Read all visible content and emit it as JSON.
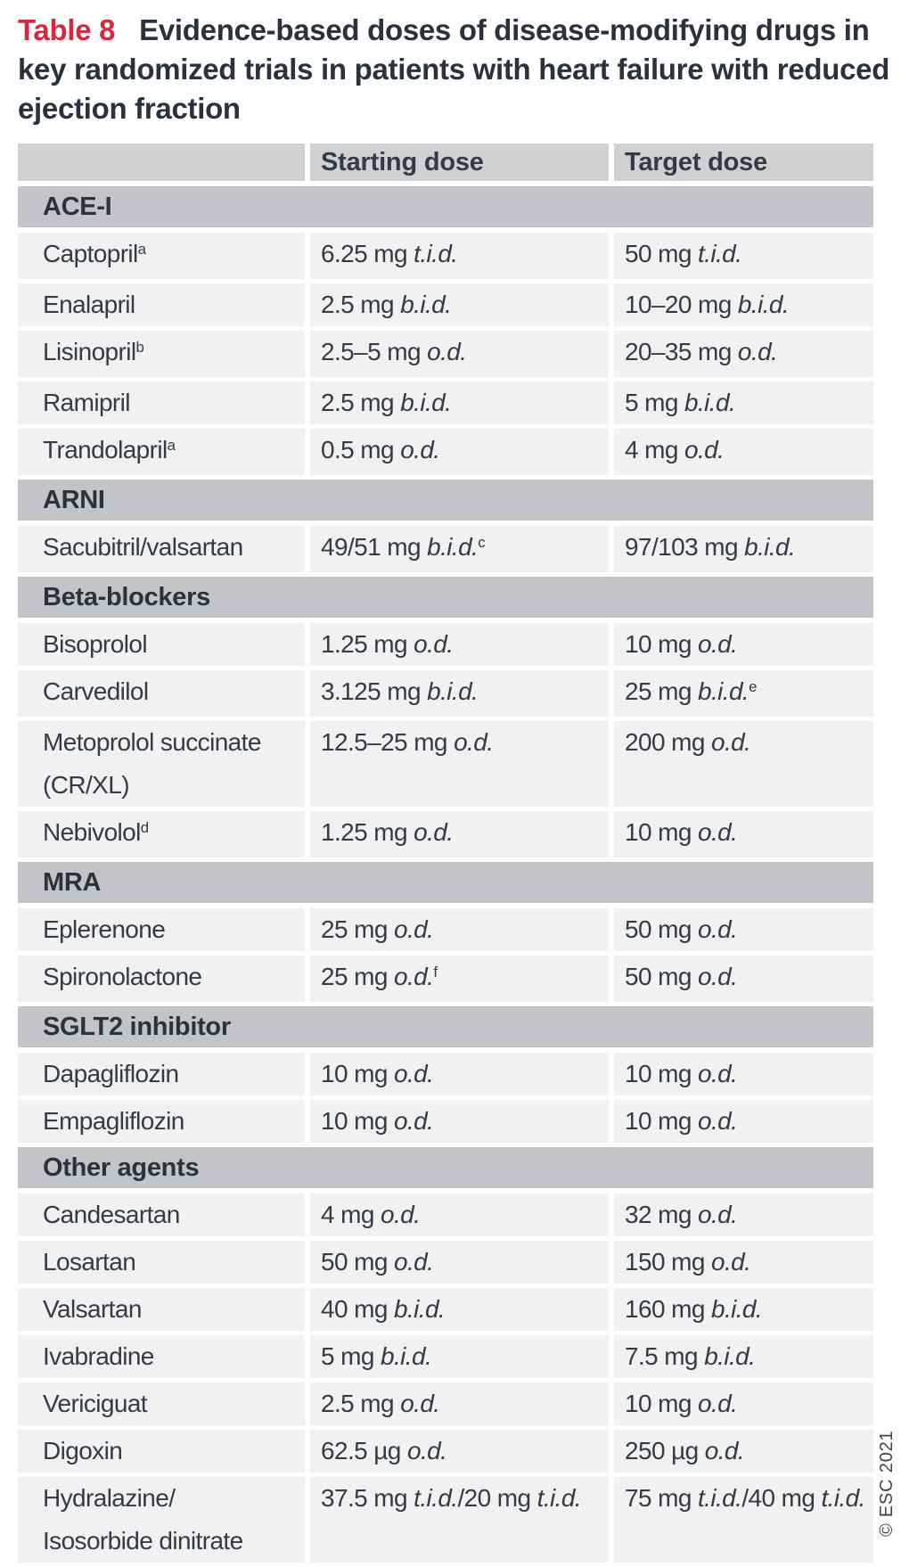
{
  "title": {
    "tag": "Table 8",
    "text": "Evidence-based doses of disease-modifying drugs in key randomized trials in patients with heart failure with reduced ejection fraction"
  },
  "columns": {
    "starting": "Starting dose",
    "target": "Target dose"
  },
  "copyright": "© ESC 2021",
  "colors": {
    "accent_red": "#d5293d",
    "title_text": "#2a323d",
    "text": "#333b46",
    "header_row_bg": "#cfd1d3",
    "section_bg": "#c2c4c7",
    "row_bg": "#f1f1f2",
    "copyright_text": "#3c444e"
  },
  "sections": [
    {
      "name": "ACE-I",
      "rows": [
        {
          "drug": [
            {
              "t": "Captopril"
            },
            {
              "sup": "a"
            }
          ],
          "start": [
            {
              "t": "6.25 mg "
            },
            {
              "i": "t.i.d."
            }
          ],
          "target": [
            {
              "t": "50 mg "
            },
            {
              "i": "t.i.d."
            }
          ]
        },
        {
          "drug": [
            {
              "t": "Enalapril"
            }
          ],
          "start": [
            {
              "t": "2.5 mg "
            },
            {
              "i": "b.i.d."
            }
          ],
          "target": [
            {
              "t": "10–20 mg "
            },
            {
              "i": "b.i.d."
            }
          ]
        },
        {
          "drug": [
            {
              "t": "Lisinopril"
            },
            {
              "sup": "b"
            }
          ],
          "start": [
            {
              "t": "2.5–5 mg "
            },
            {
              "i": "o.d."
            }
          ],
          "target": [
            {
              "t": "20–35 mg "
            },
            {
              "i": "o.d."
            }
          ]
        },
        {
          "drug": [
            {
              "t": "Ramipril"
            }
          ],
          "start": [
            {
              "t": "2.5 mg "
            },
            {
              "i": "b.i.d."
            }
          ],
          "target": [
            {
              "t": "5 mg "
            },
            {
              "i": "b.i.d."
            }
          ]
        },
        {
          "drug": [
            {
              "t": "Trandolapril"
            },
            {
              "sup": "a"
            }
          ],
          "start": [
            {
              "t": "0.5 mg "
            },
            {
              "i": "o.d."
            }
          ],
          "target": [
            {
              "t": "4 mg "
            },
            {
              "i": "o.d."
            }
          ]
        }
      ]
    },
    {
      "name": "ARNI",
      "rows": [
        {
          "drug": [
            {
              "t": "Sacubitril/valsartan"
            }
          ],
          "start": [
            {
              "t": "49/51 mg "
            },
            {
              "i": "b.i.d."
            },
            {
              "sup": "c"
            }
          ],
          "target": [
            {
              "t": "97/103 mg "
            },
            {
              "i": "b.i.d."
            }
          ]
        }
      ]
    },
    {
      "name": "Beta-blockers",
      "rows": [
        {
          "drug": [
            {
              "t": "Bisoprolol"
            }
          ],
          "start": [
            {
              "t": "1.25 mg "
            },
            {
              "i": "o.d."
            }
          ],
          "target": [
            {
              "t": "10 mg "
            },
            {
              "i": "o.d."
            }
          ]
        },
        {
          "drug": [
            {
              "t": "Carvedilol"
            }
          ],
          "start": [
            {
              "t": "3.125 mg "
            },
            {
              "i": "b.i.d."
            }
          ],
          "target": [
            {
              "t": "25 mg "
            },
            {
              "i": "b.i.d."
            },
            {
              "sup": "e"
            }
          ]
        },
        {
          "drug": [
            {
              "t": "Metoprolol succinate"
            },
            {
              "br": true
            },
            {
              "t": "(CR/XL)"
            }
          ],
          "start": [
            {
              "t": "12.5–25 mg "
            },
            {
              "i": "o.d."
            }
          ],
          "target": [
            {
              "t": "200 mg "
            },
            {
              "i": "o.d."
            }
          ]
        },
        {
          "drug": [
            {
              "t": "Nebivolol"
            },
            {
              "sup": "d"
            }
          ],
          "start": [
            {
              "t": "1.25 mg "
            },
            {
              "i": "o.d."
            }
          ],
          "target": [
            {
              "t": "10 mg "
            },
            {
              "i": "o.d."
            }
          ]
        }
      ]
    },
    {
      "name": "MRA",
      "rows": [
        {
          "drug": [
            {
              "t": "Eplerenone"
            }
          ],
          "start": [
            {
              "t": "25 mg "
            },
            {
              "i": "o.d."
            }
          ],
          "target": [
            {
              "t": "50 mg "
            },
            {
              "i": "o.d."
            }
          ]
        },
        {
          "drug": [
            {
              "t": "Spironolactone"
            }
          ],
          "start": [
            {
              "t": "25 mg "
            },
            {
              "i": "o.d."
            },
            {
              "sup": "f"
            }
          ],
          "target": [
            {
              "t": "50 mg "
            },
            {
              "i": "o.d."
            }
          ]
        }
      ]
    },
    {
      "name": "SGLT2 inhibitor",
      "rows": [
        {
          "drug": [
            {
              "t": "Dapagliflozin"
            }
          ],
          "start": [
            {
              "t": "10 mg "
            },
            {
              "i": "o.d."
            }
          ],
          "target": [
            {
              "t": "10 mg "
            },
            {
              "i": "o.d."
            }
          ]
        },
        {
          "drug": [
            {
              "t": "Empagliflozin"
            }
          ],
          "start": [
            {
              "t": "10 mg "
            },
            {
              "i": "o.d."
            }
          ],
          "target": [
            {
              "t": "10 mg "
            },
            {
              "i": "o.d."
            }
          ]
        }
      ]
    },
    {
      "name": "Other agents",
      "rows": [
        {
          "drug": [
            {
              "t": "Candesartan"
            }
          ],
          "start": [
            {
              "t": "4 mg "
            },
            {
              "i": "o.d."
            }
          ],
          "target": [
            {
              "t": "32 mg "
            },
            {
              "i": "o.d."
            }
          ]
        },
        {
          "drug": [
            {
              "t": "Losartan"
            }
          ],
          "start": [
            {
              "t": "50 mg "
            },
            {
              "i": "o.d."
            }
          ],
          "target": [
            {
              "t": "150 mg "
            },
            {
              "i": "o.d."
            }
          ]
        },
        {
          "drug": [
            {
              "t": "Valsartan"
            }
          ],
          "start": [
            {
              "t": "40 mg "
            },
            {
              "i": "b.i.d."
            }
          ],
          "target": [
            {
              "t": "160 mg "
            },
            {
              "i": "b.i.d."
            }
          ]
        },
        {
          "drug": [
            {
              "t": "Ivabradine"
            }
          ],
          "start": [
            {
              "t": "5 mg "
            },
            {
              "i": "b.i.d."
            }
          ],
          "target": [
            {
              "t": "7.5 mg "
            },
            {
              "i": "b.i.d."
            }
          ]
        },
        {
          "drug": [
            {
              "t": "Vericiguat"
            }
          ],
          "start": [
            {
              "t": "2.5 mg "
            },
            {
              "i": "o.d."
            }
          ],
          "target": [
            {
              "t": "10 mg "
            },
            {
              "i": "o.d."
            }
          ]
        },
        {
          "drug": [
            {
              "t": "Digoxin"
            }
          ],
          "start": [
            {
              "t": "62.5 µg "
            },
            {
              "i": "o.d."
            }
          ],
          "target": [
            {
              "t": "250 µg "
            },
            {
              "i": "o.d."
            }
          ]
        },
        {
          "drug": [
            {
              "t": "Hydralazine/"
            },
            {
              "br": true
            },
            {
              "t": "Isosorbide dinitrate"
            }
          ],
          "start": [
            {
              "t": "37.5 mg "
            },
            {
              "i": "t.i.d."
            },
            {
              "t": "/20 mg "
            },
            {
              "i": "t.i.d."
            }
          ],
          "target": [
            {
              "t": "75 mg "
            },
            {
              "i": "t.i.d."
            },
            {
              "t": "/40 mg "
            },
            {
              "i": "t.i.d."
            }
          ]
        }
      ]
    }
  ]
}
